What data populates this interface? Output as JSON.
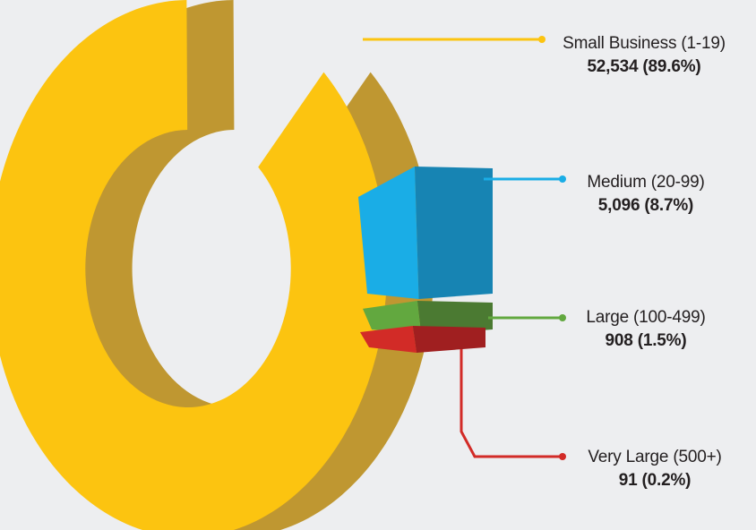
{
  "chart_data": {
    "type": "pie",
    "style": "3d-donut",
    "title": "",
    "series": [
      {
        "values": [
          {
            "label": "Small Business (1-19)",
            "value": 52534,
            "percent": 89.6,
            "value_text": "52,534 (89.6%)",
            "color": "#fcc410",
            "side_color": "#bf9731"
          },
          {
            "label": "Medium (20-99)",
            "value": 5096,
            "percent": 8.7,
            "value_text": "5,096 (8.7%)",
            "color": "#1aade6",
            "side_color": "#1784b3"
          },
          {
            "label": "Large (100-499)",
            "value": 908,
            "percent": 1.5,
            "value_text": "908 (1.5%)",
            "color": "#62a83f",
            "side_color": "#4b7a32"
          },
          {
            "label": "Very Large (500+)",
            "value": 91,
            "percent": 0.2,
            "value_text": "91 (0.2%)",
            "color": "#d22b27",
            "side_color": "#a01f20"
          }
        ]
      }
    ]
  },
  "colors": {
    "background": "#edeef0",
    "text": "#231f20"
  }
}
